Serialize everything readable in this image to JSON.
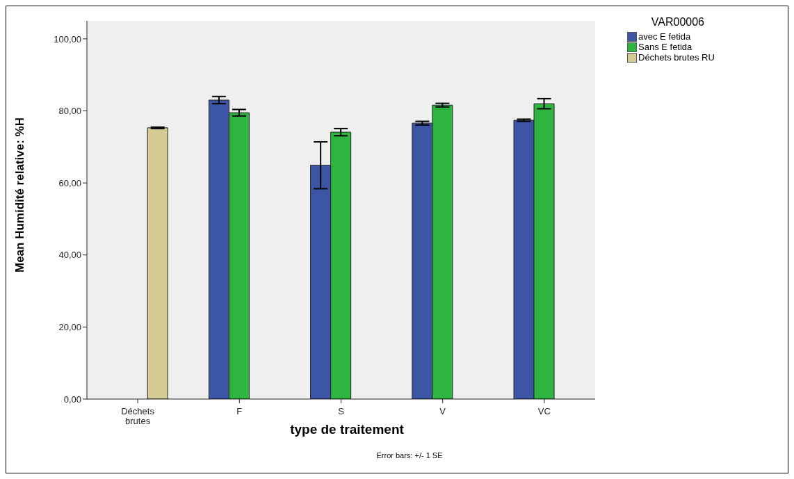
{
  "chart_data": {
    "type": "bar",
    "xlabel": "type de traitement",
    "ylabel": "Mean Humidité relative: %H",
    "legend_title": "VAR00006",
    "annotations": [
      "Error bars: +/- 1 SE"
    ],
    "categories": [
      "Déchets brutes",
      "F",
      "S",
      "V",
      "VC"
    ],
    "series": [
      {
        "name": "avec E fetida",
        "color": "#3c55a5",
        "values": [
          null,
          83.0,
          64.9,
          76.6,
          77.4
        ],
        "errors": [
          null,
          1.0,
          6.5,
          0.5,
          0.3
        ]
      },
      {
        "name": "Sans E fetida",
        "color": "#2db540",
        "values": [
          null,
          79.5,
          74.1,
          81.6,
          82.0
        ],
        "errors": [
          null,
          0.9,
          1.0,
          0.5,
          1.4
        ]
      },
      {
        "name": "Déchets brutes RU",
        "color": "#d4cc94",
        "values": [
          75.3,
          null,
          null,
          null,
          null
        ],
        "errors": [
          0.2,
          null,
          null,
          null,
          null
        ]
      }
    ],
    "ylim": [
      0,
      105
    ],
    "yticks": [
      {
        "value": 0,
        "label": "0,00"
      },
      {
        "value": 20,
        "label": "20,00"
      },
      {
        "value": 40,
        "label": "40,00"
      },
      {
        "value": 60,
        "label": "60,00"
      },
      {
        "value": 80,
        "label": "80,00"
      },
      {
        "value": 100,
        "label": "100,00"
      }
    ],
    "grid": false,
    "legend": "top right"
  }
}
